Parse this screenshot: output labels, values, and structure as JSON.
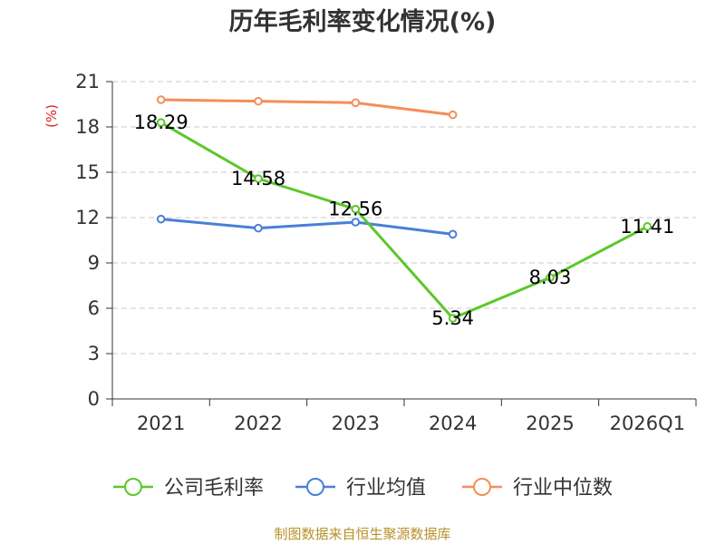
{
  "chart_data": {
    "type": "line",
    "title": "历年毛利率变化情况(%)",
    "unit_label": "(%)",
    "categories": [
      "2021",
      "2022",
      "2023",
      "2024",
      "2025",
      "2026Q1"
    ],
    "ylim": [
      0,
      21
    ],
    "yticks": [
      0,
      3,
      6,
      9,
      12,
      15,
      18,
      21
    ],
    "grid": true,
    "legend_position": "bottom",
    "series": [
      {
        "name": "公司毛利率",
        "color": "#5cc72a",
        "values": [
          18.29,
          14.58,
          12.56,
          5.34,
          8.03,
          11.41
        ],
        "labels": [
          "18.29",
          "14.58",
          "12.56",
          "5.34",
          "8.03",
          "11.41"
        ]
      },
      {
        "name": "行业均值",
        "color": "#4a7fd6",
        "values": [
          11.9,
          11.3,
          11.7,
          10.9,
          null,
          null
        ]
      },
      {
        "name": "行业中位数",
        "color": "#f38f5a",
        "values": [
          19.8,
          19.7,
          19.6,
          18.8,
          null,
          null
        ]
      }
    ],
    "source": "制图数据来自恒生聚源数据库"
  }
}
